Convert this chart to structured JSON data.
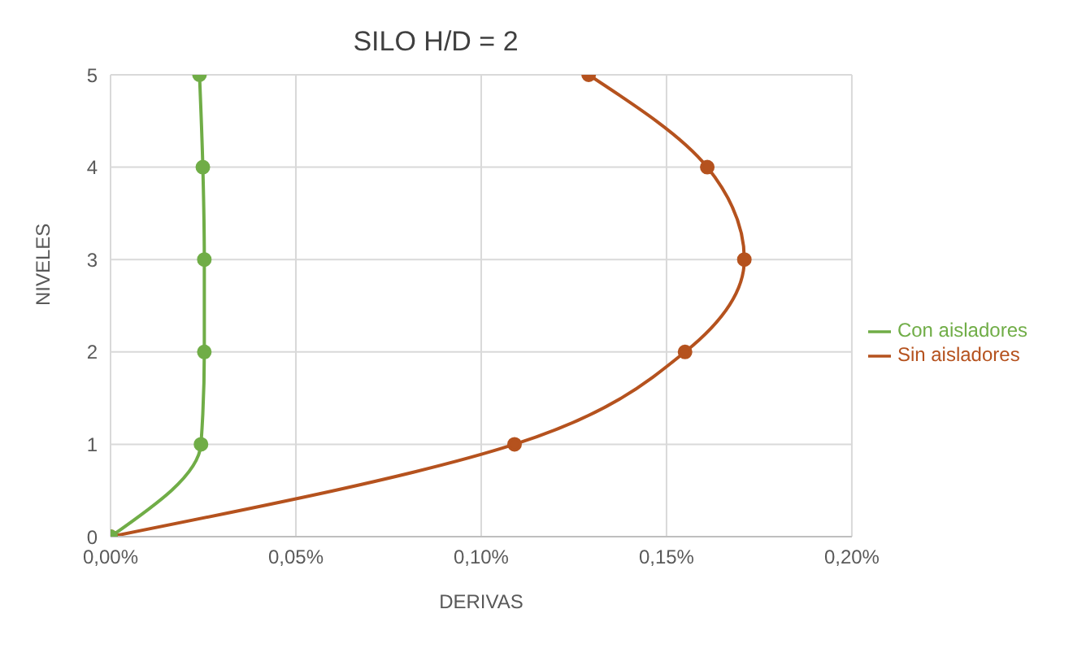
{
  "chart_data": {
    "type": "line",
    "title": "SILO H/D = 2",
    "xlabel": "DERIVAS",
    "ylabel": "NIVELES",
    "xlim": [
      0,
      0.2
    ],
    "xticks": [
      {
        "value": 0,
        "label": "0,00%"
      },
      {
        "value": 0.05,
        "label": "0,05%"
      },
      {
        "value": 0.1,
        "label": "0,10%"
      },
      {
        "value": 0.15,
        "label": "0,15%"
      },
      {
        "value": 0.2,
        "label": "0,20%"
      }
    ],
    "ylim": [
      0,
      5
    ],
    "yticks": [
      0,
      1,
      2,
      3,
      4,
      5
    ],
    "grid": true,
    "legend": "right",
    "marker": "circle",
    "line_style": "solid",
    "series": [
      {
        "name": "Sin aisladores",
        "color": "#b5521e",
        "x": [
          0,
          0.109,
          0.155,
          0.171,
          0.161,
          0.129
        ],
        "values": [
          0,
          1,
          2,
          3,
          4,
          5
        ]
      },
      {
        "name": "Con aisladores",
        "color": "#70ad47",
        "x": [
          0,
          0.0244,
          0.0253,
          0.0253,
          0.0249,
          0.024
        ],
        "values": [
          0,
          1,
          2,
          3,
          4,
          5
        ]
      }
    ]
  }
}
